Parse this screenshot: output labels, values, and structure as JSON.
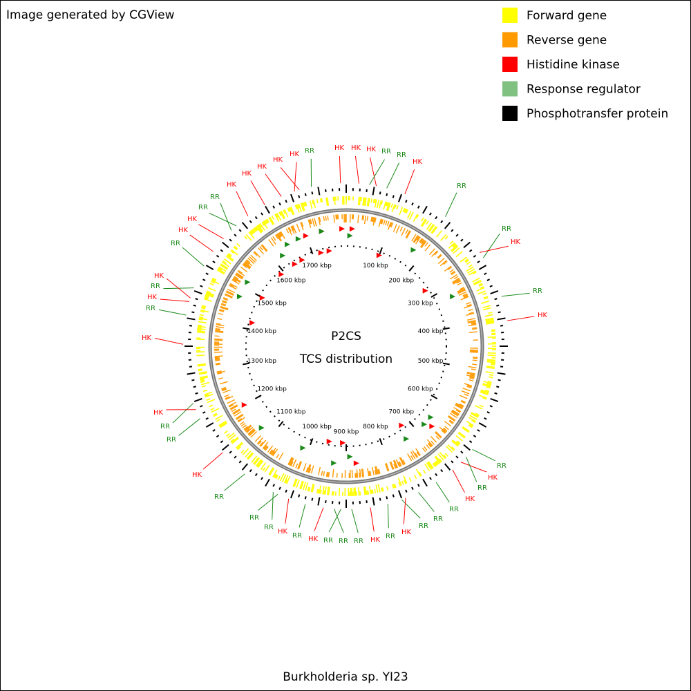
{
  "header": "Image generated by CGView",
  "legend": [
    {
      "label": "Forward gene",
      "color": "#ffff00"
    },
    {
      "label": "Reverse gene",
      "color": "#ff9900"
    },
    {
      "label": "Histidine kinase",
      "color": "#ff0000"
    },
    {
      "label": "Response regulator",
      "color": "#80c080"
    },
    {
      "label": "Phosphotransfer protein",
      "color": "#000000"
    }
  ],
  "center_title": "P2CS",
  "center_subtitle": "TCS distribution",
  "caption": "Burkholderia sp. YI23",
  "ticks": [
    "100 kbp",
    "200 kbp",
    "300 kbp",
    "400 kbp",
    "500 kbp",
    "600 kbp",
    "700 kbp",
    "800 kbp",
    "900 kbp",
    "1000 kbp",
    "1100 kbp",
    "1200 kbp",
    "1300 kbp",
    "1400 kbp",
    "1500 kbp",
    "1600 kbp",
    "1700 kbp"
  ],
  "callouts": [
    "HK",
    "RR",
    "HK",
    "HK",
    "HK",
    "RR",
    "RR",
    "HK",
    "RR",
    "RR",
    "HK",
    "RR",
    "HK",
    "RR",
    "HK",
    "RR",
    "HK",
    "RR",
    "RR",
    "RR",
    "HK",
    "RR",
    "HK",
    "RR",
    "RR",
    "RR",
    "HK",
    "RR",
    "HK",
    "RR",
    "RR",
    "RR",
    "HK",
    "RR",
    "RR",
    "HK",
    "HK",
    "RR",
    "HK",
    "RR",
    "HK",
    "RR",
    "HK",
    "HK",
    "RR",
    "RR",
    "HK",
    "HK",
    "HK",
    "HK"
  ]
}
